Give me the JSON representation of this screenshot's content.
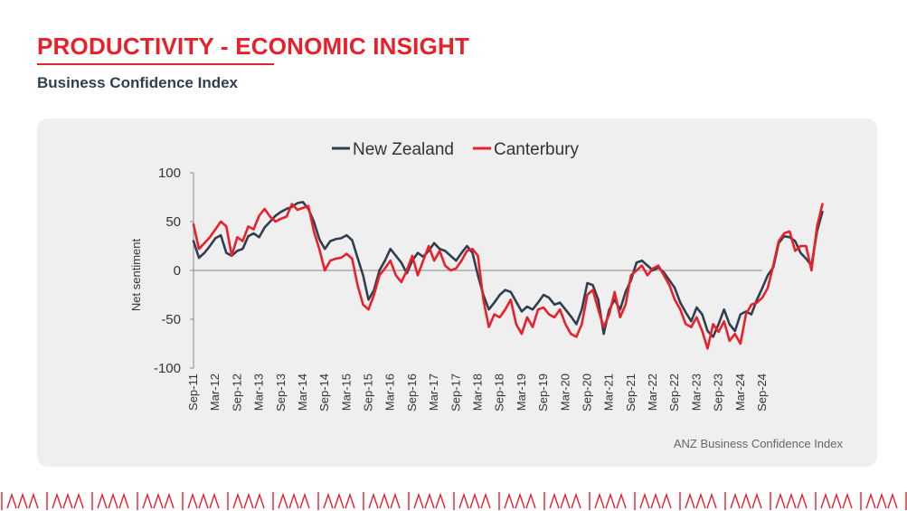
{
  "header": {
    "title": "PRODUCTIVITY - ECONOMIC INSIGHT",
    "subtitle": "Business Confidence Index"
  },
  "colors": {
    "accent": "#e8202a",
    "navy": "#2f3f50",
    "panel": "#efefef"
  },
  "chart_data": {
    "type": "line",
    "ylabel": "Net sentiment",
    "xlabel": "",
    "ylim": [
      -100,
      100
    ],
    "y_ticks": [
      100,
      50,
      0,
      -50,
      -100
    ],
    "x_tick_labels": [
      "Sep-11",
      "Mar-12",
      "Sep-12",
      "Mar-13",
      "Sep-13",
      "Mar-14",
      "Sep-14",
      "Mar-15",
      "Sep-15",
      "Mar-16",
      "Sep-16",
      "Mar-17",
      "Sep-17",
      "Mar-18",
      "Sep-18",
      "Mar-19",
      "Sep-19",
      "Mar-20",
      "Sep-20",
      "Mar-21",
      "Sep-21",
      "Mar-22",
      "Sep-22",
      "Mar-23",
      "Sep-23",
      "Mar-24",
      "Sep-24"
    ],
    "legend_position": "top-center",
    "grid": false,
    "source": "ANZ Business Confidence Index",
    "series": [
      {
        "name": "New Zealand",
        "color": "#2f3f50",
        "points": [
          [
            0,
            30
          ],
          [
            0.5,
            13
          ],
          [
            1,
            18
          ],
          [
            1.5,
            25
          ],
          [
            2,
            33
          ],
          [
            2.5,
            36
          ],
          [
            3,
            18
          ],
          [
            3.5,
            15
          ],
          [
            4,
            20
          ],
          [
            4.5,
            22
          ],
          [
            5,
            35
          ],
          [
            5.5,
            38
          ],
          [
            6,
            34
          ],
          [
            6.5,
            44
          ],
          [
            7,
            50
          ],
          [
            7.5,
            56
          ],
          [
            8,
            60
          ],
          [
            8.5,
            63
          ],
          [
            9,
            65
          ],
          [
            9.5,
            69
          ],
          [
            10,
            70
          ],
          [
            10.5,
            63
          ],
          [
            11,
            50
          ],
          [
            11.5,
            32
          ],
          [
            12,
            22
          ],
          [
            12.5,
            30
          ],
          [
            13,
            32
          ],
          [
            13.5,
            33
          ],
          [
            14,
            36
          ],
          [
            14.5,
            31
          ],
          [
            15,
            13
          ],
          [
            15.5,
            -5
          ],
          [
            16,
            -30
          ],
          [
            16.5,
            -20
          ],
          [
            17,
            0
          ],
          [
            17.5,
            10
          ],
          [
            18,
            22
          ],
          [
            18.5,
            15
          ],
          [
            19,
            8
          ],
          [
            19.5,
            -3
          ],
          [
            20,
            10
          ],
          [
            20.5,
            18
          ],
          [
            21,
            14
          ],
          [
            21.5,
            20
          ],
          [
            22,
            28
          ],
          [
            22.5,
            22
          ],
          [
            23,
            20
          ],
          [
            23.5,
            15
          ],
          [
            24,
            10
          ],
          [
            24.5,
            18
          ],
          [
            25,
            25
          ],
          [
            25.5,
            18
          ],
          [
            26,
            -5
          ],
          [
            26.5,
            -25
          ],
          [
            27,
            -40
          ],
          [
            27.5,
            -33
          ],
          [
            28,
            -25
          ],
          [
            28.5,
            -20
          ],
          [
            29,
            -22
          ],
          [
            29.5,
            -32
          ],
          [
            30,
            -42
          ],
          [
            30.5,
            -37
          ],
          [
            31,
            -40
          ],
          [
            31.5,
            -33
          ],
          [
            32,
            -25
          ],
          [
            32.5,
            -28
          ],
          [
            33,
            -35
          ],
          [
            33.5,
            -33
          ],
          [
            34,
            -40
          ],
          [
            34.5,
            -47
          ],
          [
            35,
            -55
          ],
          [
            35.5,
            -40
          ],
          [
            36,
            -13
          ],
          [
            36.5,
            -15
          ],
          [
            37,
            -30
          ],
          [
            37.5,
            -65
          ],
          [
            38,
            -40
          ],
          [
            38.5,
            -30
          ],
          [
            39,
            -40
          ],
          [
            39.5,
            -22
          ],
          [
            40,
            -10
          ],
          [
            40.5,
            8
          ],
          [
            41,
            10
          ],
          [
            41.5,
            5
          ],
          [
            42,
            0
          ],
          [
            42.5,
            3
          ],
          [
            43,
            -2
          ],
          [
            43.5,
            -10
          ],
          [
            44,
            -18
          ],
          [
            44.5,
            -33
          ],
          [
            45,
            -43
          ],
          [
            45.5,
            -52
          ],
          [
            46,
            -38
          ],
          [
            46.5,
            -45
          ],
          [
            47,
            -62
          ],
          [
            47.5,
            -68
          ],
          [
            48,
            -55
          ],
          [
            48.5,
            -40
          ],
          [
            49,
            -55
          ],
          [
            49.5,
            -62
          ],
          [
            50,
            -45
          ],
          [
            50.5,
            -42
          ],
          [
            51,
            -45
          ],
          [
            51.5,
            -30
          ],
          [
            52,
            -18
          ],
          [
            52.5,
            -5
          ],
          [
            53,
            3
          ],
          [
            53.5,
            28
          ],
          [
            54,
            35
          ],
          [
            54.5,
            34
          ],
          [
            55,
            30
          ],
          [
            55.5,
            18
          ],
          [
            56,
            12
          ],
          [
            56.5,
            5
          ],
          [
            57,
            40
          ],
          [
            57.5,
            60
          ]
        ]
      },
      {
        "name": "Canterbury",
        "color": "#e8202a",
        "points": [
          [
            0,
            47
          ],
          [
            0.5,
            22
          ],
          [
            1,
            28
          ],
          [
            1.5,
            34
          ],
          [
            2,
            42
          ],
          [
            2.5,
            50
          ],
          [
            3,
            45
          ],
          [
            3.5,
            15
          ],
          [
            4,
            34
          ],
          [
            4.5,
            30
          ],
          [
            5,
            45
          ],
          [
            5.5,
            42
          ],
          [
            6,
            56
          ],
          [
            6.5,
            63
          ],
          [
            7,
            55
          ],
          [
            7.5,
            50
          ],
          [
            8,
            53
          ],
          [
            8.5,
            55
          ],
          [
            9,
            68
          ],
          [
            9.5,
            62
          ],
          [
            10,
            64
          ],
          [
            10.5,
            66
          ],
          [
            11,
            40
          ],
          [
            11.5,
            22
          ],
          [
            12,
            0
          ],
          [
            12.5,
            10
          ],
          [
            13,
            12
          ],
          [
            13.5,
            13
          ],
          [
            14,
            17
          ],
          [
            14.5,
            12
          ],
          [
            15,
            -15
          ],
          [
            15.5,
            -35
          ],
          [
            16,
            -40
          ],
          [
            16.5,
            -25
          ],
          [
            17,
            -5
          ],
          [
            17.5,
            2
          ],
          [
            18,
            10
          ],
          [
            18.5,
            -5
          ],
          [
            19,
            -12
          ],
          [
            19.5,
            0
          ],
          [
            20,
            15
          ],
          [
            20.5,
            -5
          ],
          [
            21,
            10
          ],
          [
            21.5,
            25
          ],
          [
            22,
            10
          ],
          [
            22.5,
            20
          ],
          [
            23,
            5
          ],
          [
            23.5,
            0
          ],
          [
            24,
            2
          ],
          [
            24.5,
            10
          ],
          [
            25,
            20
          ],
          [
            25.5,
            22
          ],
          [
            26,
            15
          ],
          [
            26.5,
            -30
          ],
          [
            27,
            -58
          ],
          [
            27.5,
            -45
          ],
          [
            28,
            -48
          ],
          [
            28.5,
            -40
          ],
          [
            29,
            -30
          ],
          [
            29.5,
            -55
          ],
          [
            30,
            -65
          ],
          [
            30.5,
            -48
          ],
          [
            31,
            -58
          ],
          [
            31.5,
            -40
          ],
          [
            32,
            -38
          ],
          [
            32.5,
            -45
          ],
          [
            33,
            -48
          ],
          [
            33.5,
            -40
          ],
          [
            34,
            -55
          ],
          [
            34.5,
            -65
          ],
          [
            35,
            -68
          ],
          [
            35.5,
            -55
          ],
          [
            36,
            -25
          ],
          [
            36.5,
            -20
          ],
          [
            37,
            -40
          ],
          [
            37.5,
            -58
          ],
          [
            38,
            -45
          ],
          [
            38.5,
            -22
          ],
          [
            39,
            -48
          ],
          [
            39.5,
            -35
          ],
          [
            40,
            -5
          ],
          [
            40.5,
            0
          ],
          [
            41,
            5
          ],
          [
            41.5,
            -5
          ],
          [
            42,
            2
          ],
          [
            42.5,
            5
          ],
          [
            43,
            -5
          ],
          [
            43.5,
            -15
          ],
          [
            44,
            -30
          ],
          [
            44.5,
            -40
          ],
          [
            45,
            -55
          ],
          [
            45.5,
            -58
          ],
          [
            46,
            -48
          ],
          [
            46.5,
            -62
          ],
          [
            47,
            -80
          ],
          [
            47.5,
            -55
          ],
          [
            48,
            -63
          ],
          [
            48.5,
            -52
          ],
          [
            49,
            -72
          ],
          [
            49.5,
            -65
          ],
          [
            50,
            -75
          ],
          [
            50.5,
            -45
          ],
          [
            51,
            -35
          ],
          [
            51.5,
            -33
          ],
          [
            52,
            -28
          ],
          [
            52.5,
            -18
          ],
          [
            53,
            5
          ],
          [
            53.5,
            30
          ],
          [
            54,
            38
          ],
          [
            54.5,
            40
          ],
          [
            55,
            20
          ],
          [
            55.5,
            25
          ],
          [
            56,
            25
          ],
          [
            56.5,
            0
          ],
          [
            57,
            45
          ],
          [
            57.5,
            68
          ]
        ]
      }
    ]
  }
}
